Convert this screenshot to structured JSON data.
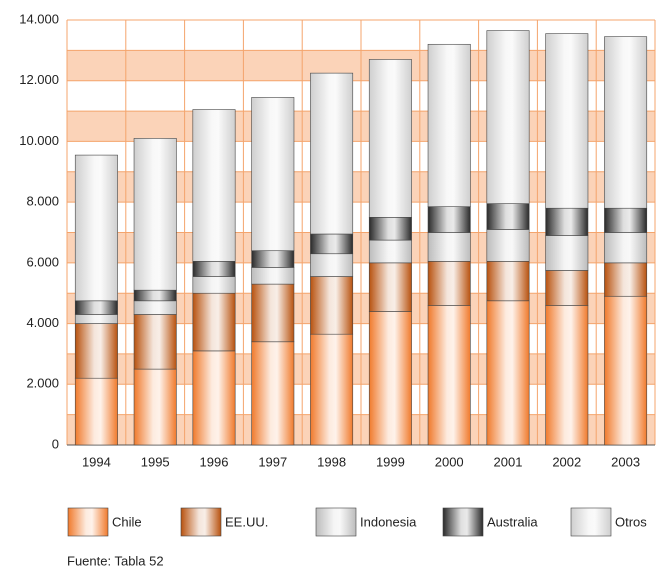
{
  "chart_data": {
    "type": "stacked_bar",
    "categories": [
      "1994",
      "1995",
      "1996",
      "1997",
      "1998",
      "1999",
      "2000",
      "2001",
      "2002",
      "2003"
    ],
    "series": [
      {
        "name": "Chile",
        "color": "#f07a2c",
        "values": [
          2200,
          2500,
          3100,
          3400,
          3650,
          4400,
          4600,
          4750,
          4600,
          4900
        ]
      },
      {
        "name": "EE.UU.",
        "color": "#b8520f",
        "values": [
          1800,
          1800,
          1900,
          1900,
          1900,
          1600,
          1450,
          1300,
          1150,
          1100
        ]
      },
      {
        "name": "Indonesia",
        "color": "#bcbcbc",
        "values": [
          300,
          450,
          550,
          550,
          750,
          750,
          950,
          1050,
          1150,
          1000
        ]
      },
      {
        "name": "Australia",
        "color": "#2a2a2a",
        "values": [
          450,
          350,
          500,
          550,
          650,
          750,
          850,
          850,
          900,
          800
        ]
      },
      {
        "name": "Otros",
        "color": "#cfcfcf",
        "values": [
          4800,
          5000,
          5000,
          5050,
          5300,
          5200,
          5350,
          5700,
          5750,
          5650
        ]
      }
    ],
    "ylim": [
      0,
      14000
    ],
    "yticks": [
      0,
      {
        "value": 2000,
        "label": "2.000"
      },
      {
        "value": 4000,
        "label": "4.000"
      },
      {
        "value": 6000,
        "label": "6.000"
      },
      {
        "value": 8000,
        "label": "8.000"
      },
      {
        "value": 10000,
        "label": "10.000"
      },
      {
        "value": 12000,
        "label": "12.000"
      },
      {
        "value": 14000,
        "label": "14.000"
      }
    ],
    "grid": true,
    "source": "Fuente: Tabla 52"
  }
}
